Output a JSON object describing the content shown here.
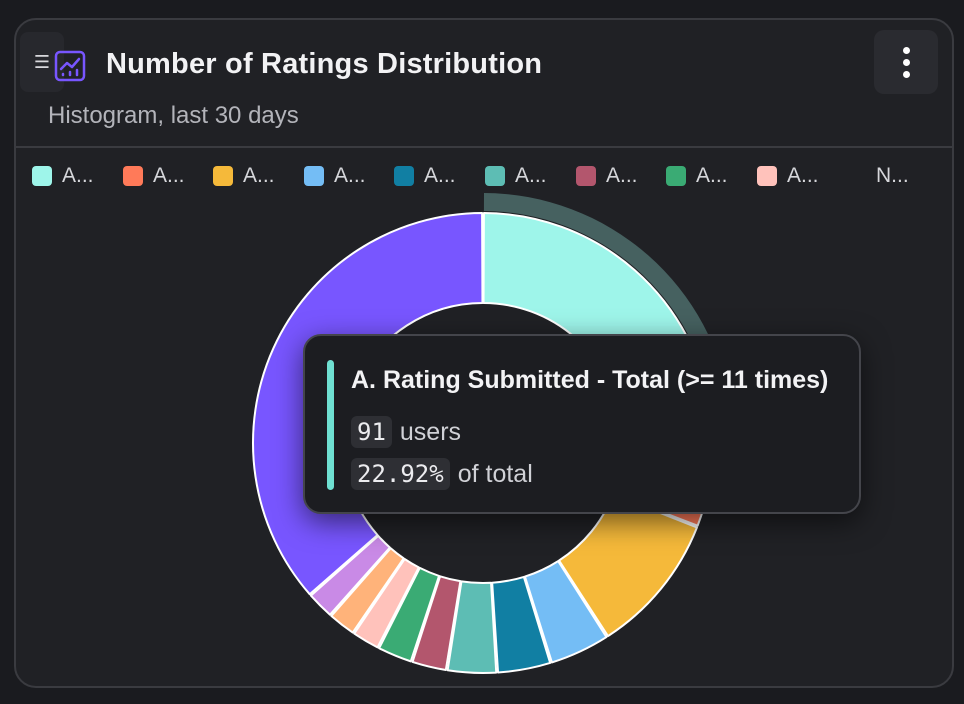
{
  "header": {
    "title": "Number of Ratings Distribution",
    "subtitle": "Histogram, last 30 days",
    "drag_handle_glyph": "☰",
    "chart_icon": "chart-line-icon",
    "menu_icon": "kebab-menu-icon"
  },
  "legend": {
    "items": [
      {
        "label": "A...",
        "color": "#9ef5ea"
      },
      {
        "label": "A...",
        "color": "#ff7a59"
      },
      {
        "label": "A...",
        "color": "#f5b93a"
      },
      {
        "label": "A...",
        "color": "#74bdf5"
      },
      {
        "label": "A...",
        "color": "#117fa3"
      },
      {
        "label": "A...",
        "color": "#5dbdb4"
      },
      {
        "label": "A...",
        "color": "#b3566d"
      },
      {
        "label": "A...",
        "color": "#3aab74"
      },
      {
        "label": "A...",
        "color": "#ffc2bb"
      },
      {
        "label": "N...",
        "color": null
      }
    ]
  },
  "tooltip": {
    "title": "A. Rating Submitted - Total (>= 11 times)",
    "count": "91",
    "count_unit": "users",
    "percent": "22.92%",
    "percent_suffix": "of total",
    "accent_color": "#6fe0d2"
  },
  "chart_data": {
    "type": "pie",
    "variant": "donut",
    "highlighted_index": 0,
    "unit": "percent",
    "slices": [
      {
        "color": "#9ef5ea",
        "value": 22.92
      },
      {
        "color": "#ff7a59",
        "value": 8.0
      },
      {
        "color": "#f5b93a",
        "value": 10.0
      },
      {
        "color": "#74bdf5",
        "value": 4.3
      },
      {
        "color": "#117fa3",
        "value": 3.8
      },
      {
        "color": "#5dbdb4",
        "value": 3.5
      },
      {
        "color": "#b3566d",
        "value": 2.5
      },
      {
        "color": "#3aab74",
        "value": 2.5
      },
      {
        "color": "#ffc2bb",
        "value": 2.0
      },
      {
        "color": "#ffb37a",
        "value": 2.0
      },
      {
        "color": "#c98ae6",
        "value": 2.0
      },
      {
        "color": "#7856ff",
        "value": 36.48
      }
    ]
  }
}
